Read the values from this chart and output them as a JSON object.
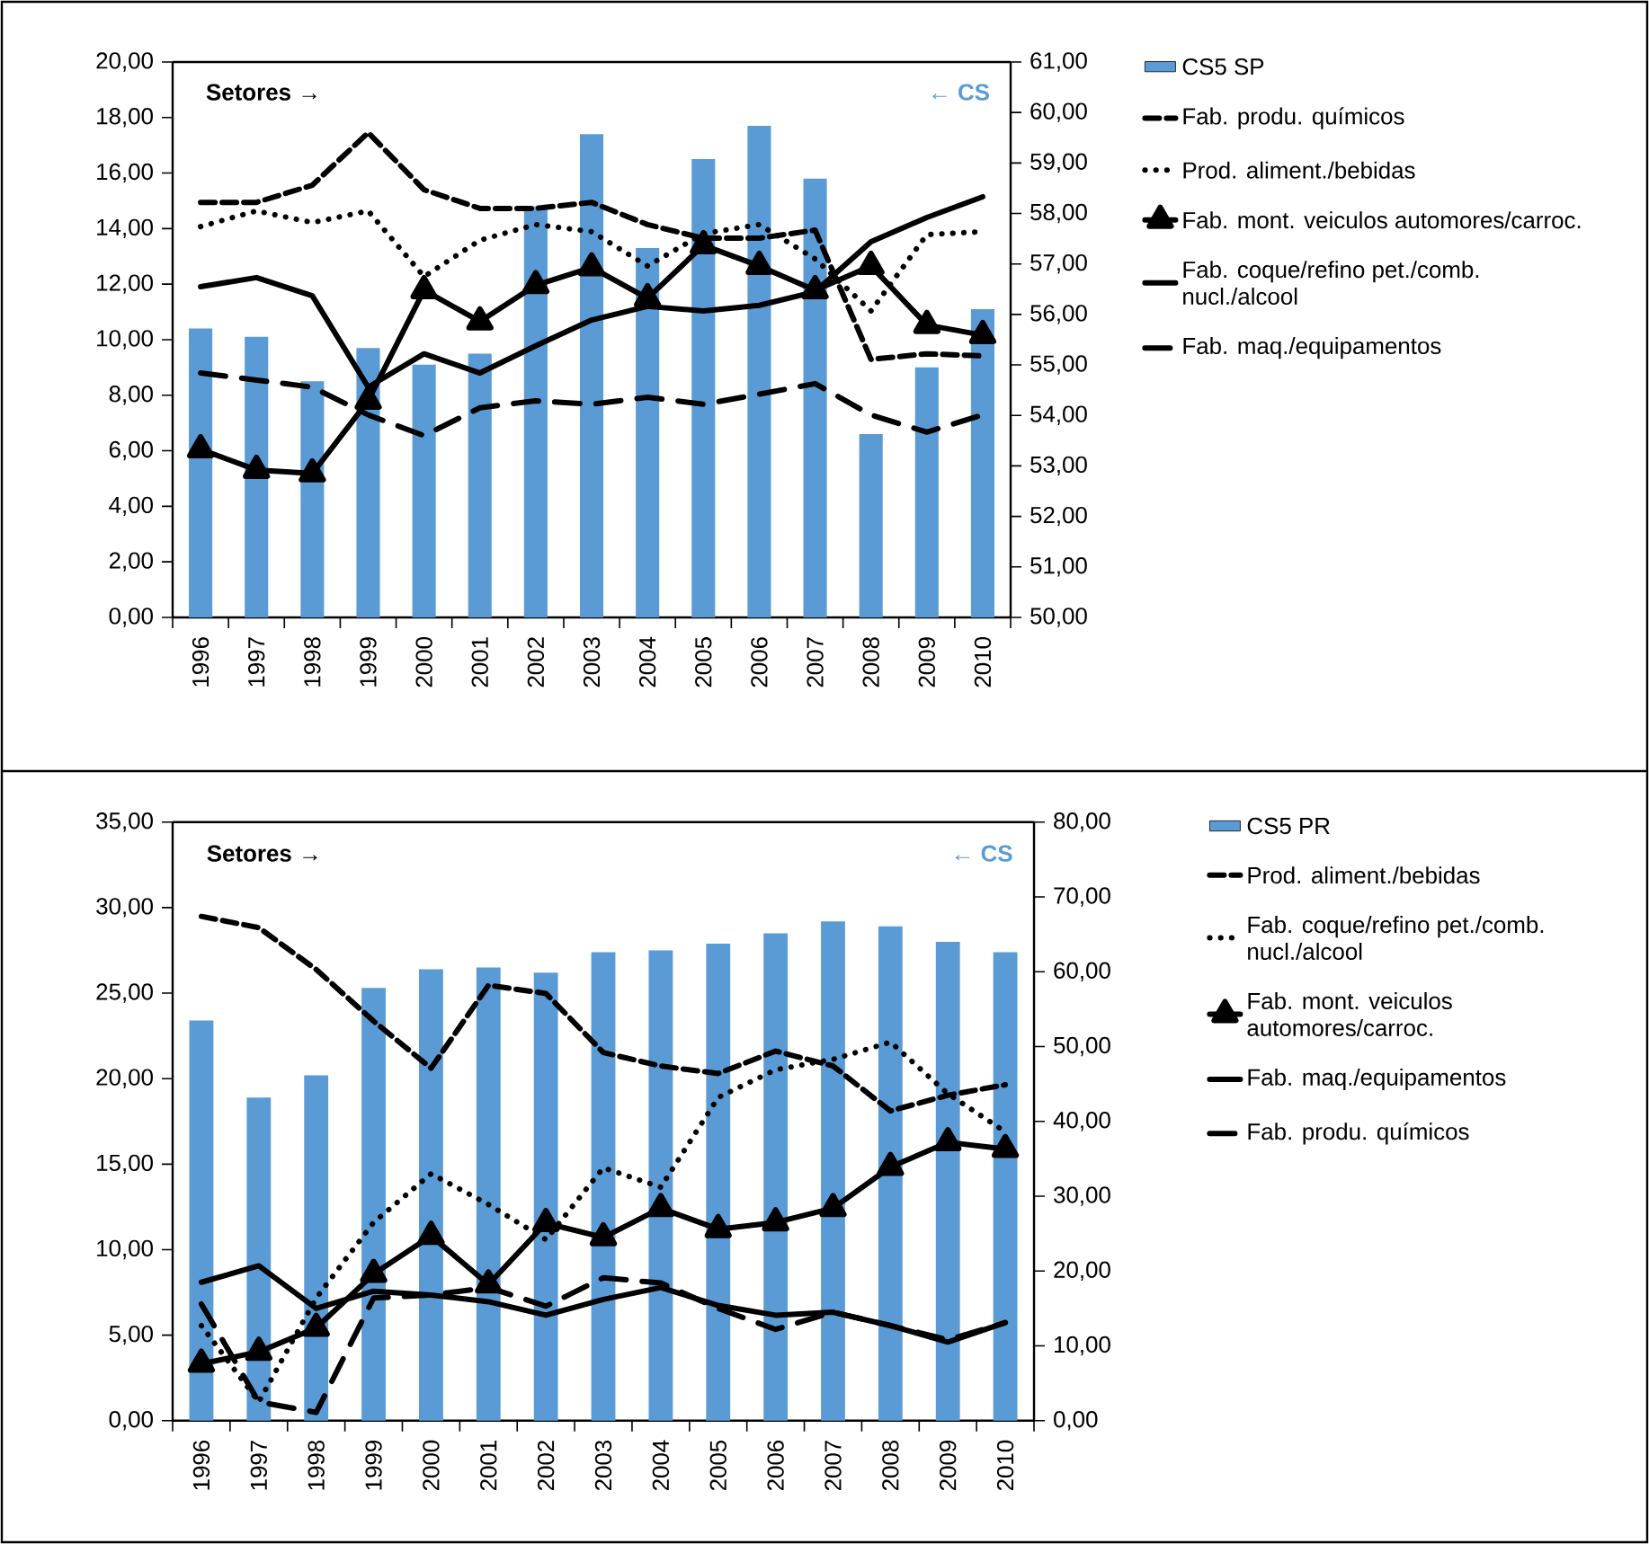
{
  "chart_data": [
    {
      "type": "bar",
      "categories": [
        "1996",
        "1997",
        "1998",
        "1999",
        "2000",
        "2001",
        "2002",
        "2003",
        "2004",
        "2005",
        "2006",
        "2007",
        "2008",
        "2009",
        "2010"
      ],
      "ylim": [
        0,
        20
      ],
      "yticks": [
        {
          "value": 0,
          "label": "0,00"
        },
        {
          "value": 2,
          "label": "2,00"
        },
        {
          "value": 4,
          "label": "4,00"
        },
        {
          "value": 6,
          "label": "6,00"
        },
        {
          "value": 8,
          "label": "8,00"
        },
        {
          "value": 10,
          "label": "10,00"
        },
        {
          "value": 12,
          "label": "12,00"
        },
        {
          "value": 14,
          "label": "14,00"
        },
        {
          "value": 16,
          "label": "16,00"
        },
        {
          "value": 18,
          "label": "18,00"
        },
        {
          "value": 20,
          "label": "20,00"
        }
      ],
      "y2lim": [
        50,
        61
      ],
      "y2ticks": [
        {
          "value": 50,
          "label": "50,00"
        },
        {
          "value": 51,
          "label": "51,00"
        },
        {
          "value": 52,
          "label": "52,00"
        },
        {
          "value": 53,
          "label": "53,00"
        },
        {
          "value": 54,
          "label": "54,00"
        },
        {
          "value": 55,
          "label": "55,00"
        },
        {
          "value": 56,
          "label": "56,00"
        },
        {
          "value": 57,
          "label": "57,00"
        },
        {
          "value": 58,
          "label": "58,00"
        },
        {
          "value": 59,
          "label": "59,00"
        },
        {
          "value": 60,
          "label": "60,00"
        },
        {
          "value": 61,
          "label": "61,00"
        }
      ],
      "legend": "right",
      "annotations": [
        "Setores →",
        "← CS"
      ],
      "series": [
        {
          "name": "CS5 SP",
          "color": "#5b9bd5",
          "values": [
            10.4,
            10.1,
            8.5,
            9.7,
            9.1,
            9.5,
            14.8,
            17.4,
            13.3,
            16.5,
            17.7,
            15.8,
            6.6,
            9.0,
            11.1
          ]
        },
        {
          "name": "Fab. produ. químicos",
          "type": "line",
          "axis": "y2",
          "color": "#000000",
          "line_style": "dashed",
          "marker": "none",
          "values": [
            58.22,
            58.22,
            58.56,
            59.6,
            58.47,
            58.1,
            58.1,
            58.22,
            57.78,
            57.51,
            57.51,
            57.67,
            55.11,
            55.22,
            55.18
          ]
        },
        {
          "name": "Prod. aliment./bebidas",
          "type": "line",
          "axis": "y2",
          "color": "#000000",
          "line_style": "dotted",
          "marker": "none",
          "values": [
            57.74,
            58.05,
            57.82,
            58.05,
            56.75,
            57.47,
            57.78,
            57.64,
            56.96,
            57.6,
            57.78,
            57.1,
            56.07,
            57.58,
            57.64
          ]
        },
        {
          "name": "Fab. mont. veiculos automores/carroc.",
          "type": "line",
          "axis": "y2",
          "color": "#000000",
          "line_style": "solid",
          "marker": "triangle",
          "values": [
            53.33,
            52.92,
            52.85,
            54.29,
            56.48,
            55.86,
            56.58,
            56.93,
            56.32,
            57.37,
            56.96,
            56.48,
            56.96,
            55.79,
            55.59
          ]
        },
        {
          "name": "Fab. coque/refino pet./comb. nucl./alcool",
          "type": "line",
          "axis": "y2",
          "color": "#000000",
          "line_style": "solid",
          "marker": "none",
          "values": [
            56.55,
            56.73,
            56.37,
            54.56,
            55.22,
            54.84,
            55.38,
            55.89,
            56.16,
            56.07,
            56.18,
            56.45,
            57.44,
            57.92,
            58.33
          ]
        },
        {
          "name": "Fab. maq./equipamentos",
          "type": "line",
          "axis": "y2",
          "color": "#000000",
          "line_style": "long dashed",
          "marker": "none",
          "values": [
            54.84,
            54.7,
            54.56,
            54.01,
            53.6,
            54.15,
            54.29,
            54.22,
            54.36,
            54.22,
            54.42,
            54.63,
            54.01,
            53.67,
            54.01
          ]
        }
      ]
    },
    {
      "type": "bar",
      "categories": [
        "1996",
        "1997",
        "1998",
        "1999",
        "2000",
        "2001",
        "2002",
        "2003",
        "2004",
        "2005",
        "2006",
        "2007",
        "2008",
        "2009",
        "2010"
      ],
      "ylim": [
        0,
        35
      ],
      "yticks": [
        {
          "value": 0,
          "label": "0,00"
        },
        {
          "value": 5,
          "label": "5,00"
        },
        {
          "value": 10,
          "label": "10,00"
        },
        {
          "value": 15,
          "label": "15,00"
        },
        {
          "value": 20,
          "label": "20,00"
        },
        {
          "value": 25,
          "label": "25,00"
        },
        {
          "value": 30,
          "label": "30,00"
        },
        {
          "value": 35,
          "label": "35,00"
        }
      ],
      "y2lim": [
        0,
        80
      ],
      "y2ticks": [
        {
          "value": 0,
          "label": "0,00"
        },
        {
          "value": 10,
          "label": "10,00"
        },
        {
          "value": 20,
          "label": "20,00"
        },
        {
          "value": 30,
          "label": "30,00"
        },
        {
          "value": 40,
          "label": "40,00"
        },
        {
          "value": 50,
          "label": "50,00"
        },
        {
          "value": 60,
          "label": "60,00"
        },
        {
          "value": 70,
          "label": "70,00"
        },
        {
          "value": 80,
          "label": "80,00"
        }
      ],
      "legend": "right",
      "annotations": [
        "Setores →",
        "← CS"
      ],
      "series": [
        {
          "name": "CS5 PR",
          "color": "#5b9bd5",
          "values": [
            23.4,
            18.9,
            20.2,
            25.3,
            26.4,
            26.5,
            26.2,
            27.4,
            27.5,
            27.9,
            28.5,
            29.2,
            28.9,
            28.0,
            27.4
          ]
        },
        {
          "name": "Prod. aliment./bebidas",
          "type": "line",
          "axis": "y2",
          "color": "#000000",
          "line_style": "dashed",
          "marker": "none",
          "values": [
            67.4,
            65.9,
            60.3,
            53.4,
            47.1,
            58.2,
            57.1,
            49.2,
            47.4,
            46.4,
            49.4,
            47.4,
            41.4,
            43.5,
            44.9
          ]
        },
        {
          "name": "Fab. coque/refino pet./comb. nucl./alcool",
          "type": "line",
          "axis": "y2",
          "color": "#000000",
          "line_style": "dotted",
          "marker": "none",
          "values": [
            12.7,
            2.5,
            16.4,
            26.5,
            33.0,
            28.9,
            24.2,
            33.8,
            31.2,
            43.2,
            46.9,
            48.3,
            50.6,
            43.7,
            38.6
          ]
        },
        {
          "name": "Fab. mont. veiculos automores/carroc.",
          "type": "line",
          "axis": "y2",
          "color": "#000000",
          "line_style": "solid",
          "marker": "triangle",
          "values": [
            7.6,
            9.2,
            12.4,
            19.6,
            24.7,
            18.2,
            26.4,
            24.5,
            28.4,
            25.6,
            26.5,
            28.4,
            33.9,
            37.2,
            36.3
          ]
        },
        {
          "name": "Fab. maq./equipamentos",
          "type": "line",
          "axis": "y2",
          "color": "#000000",
          "line_style": "solid",
          "marker": "none",
          "values": [
            18.5,
            20.7,
            15.0,
            17.3,
            16.8,
            15.9,
            14.1,
            16.2,
            17.8,
            15.4,
            14.1,
            14.5,
            12.7,
            10.5,
            13.1
          ]
        },
        {
          "name": "Fab. produ. químicos",
          "type": "line",
          "axis": "y2",
          "color": "#000000",
          "line_style": "long dashed",
          "marker": "none",
          "values": [
            15.6,
            2.5,
            1.1,
            16.4,
            16.8,
            17.8,
            15.3,
            19.1,
            18.4,
            15.0,
            12.2,
            14.5,
            12.7,
            10.8,
            13.1
          ]
        }
      ]
    }
  ]
}
